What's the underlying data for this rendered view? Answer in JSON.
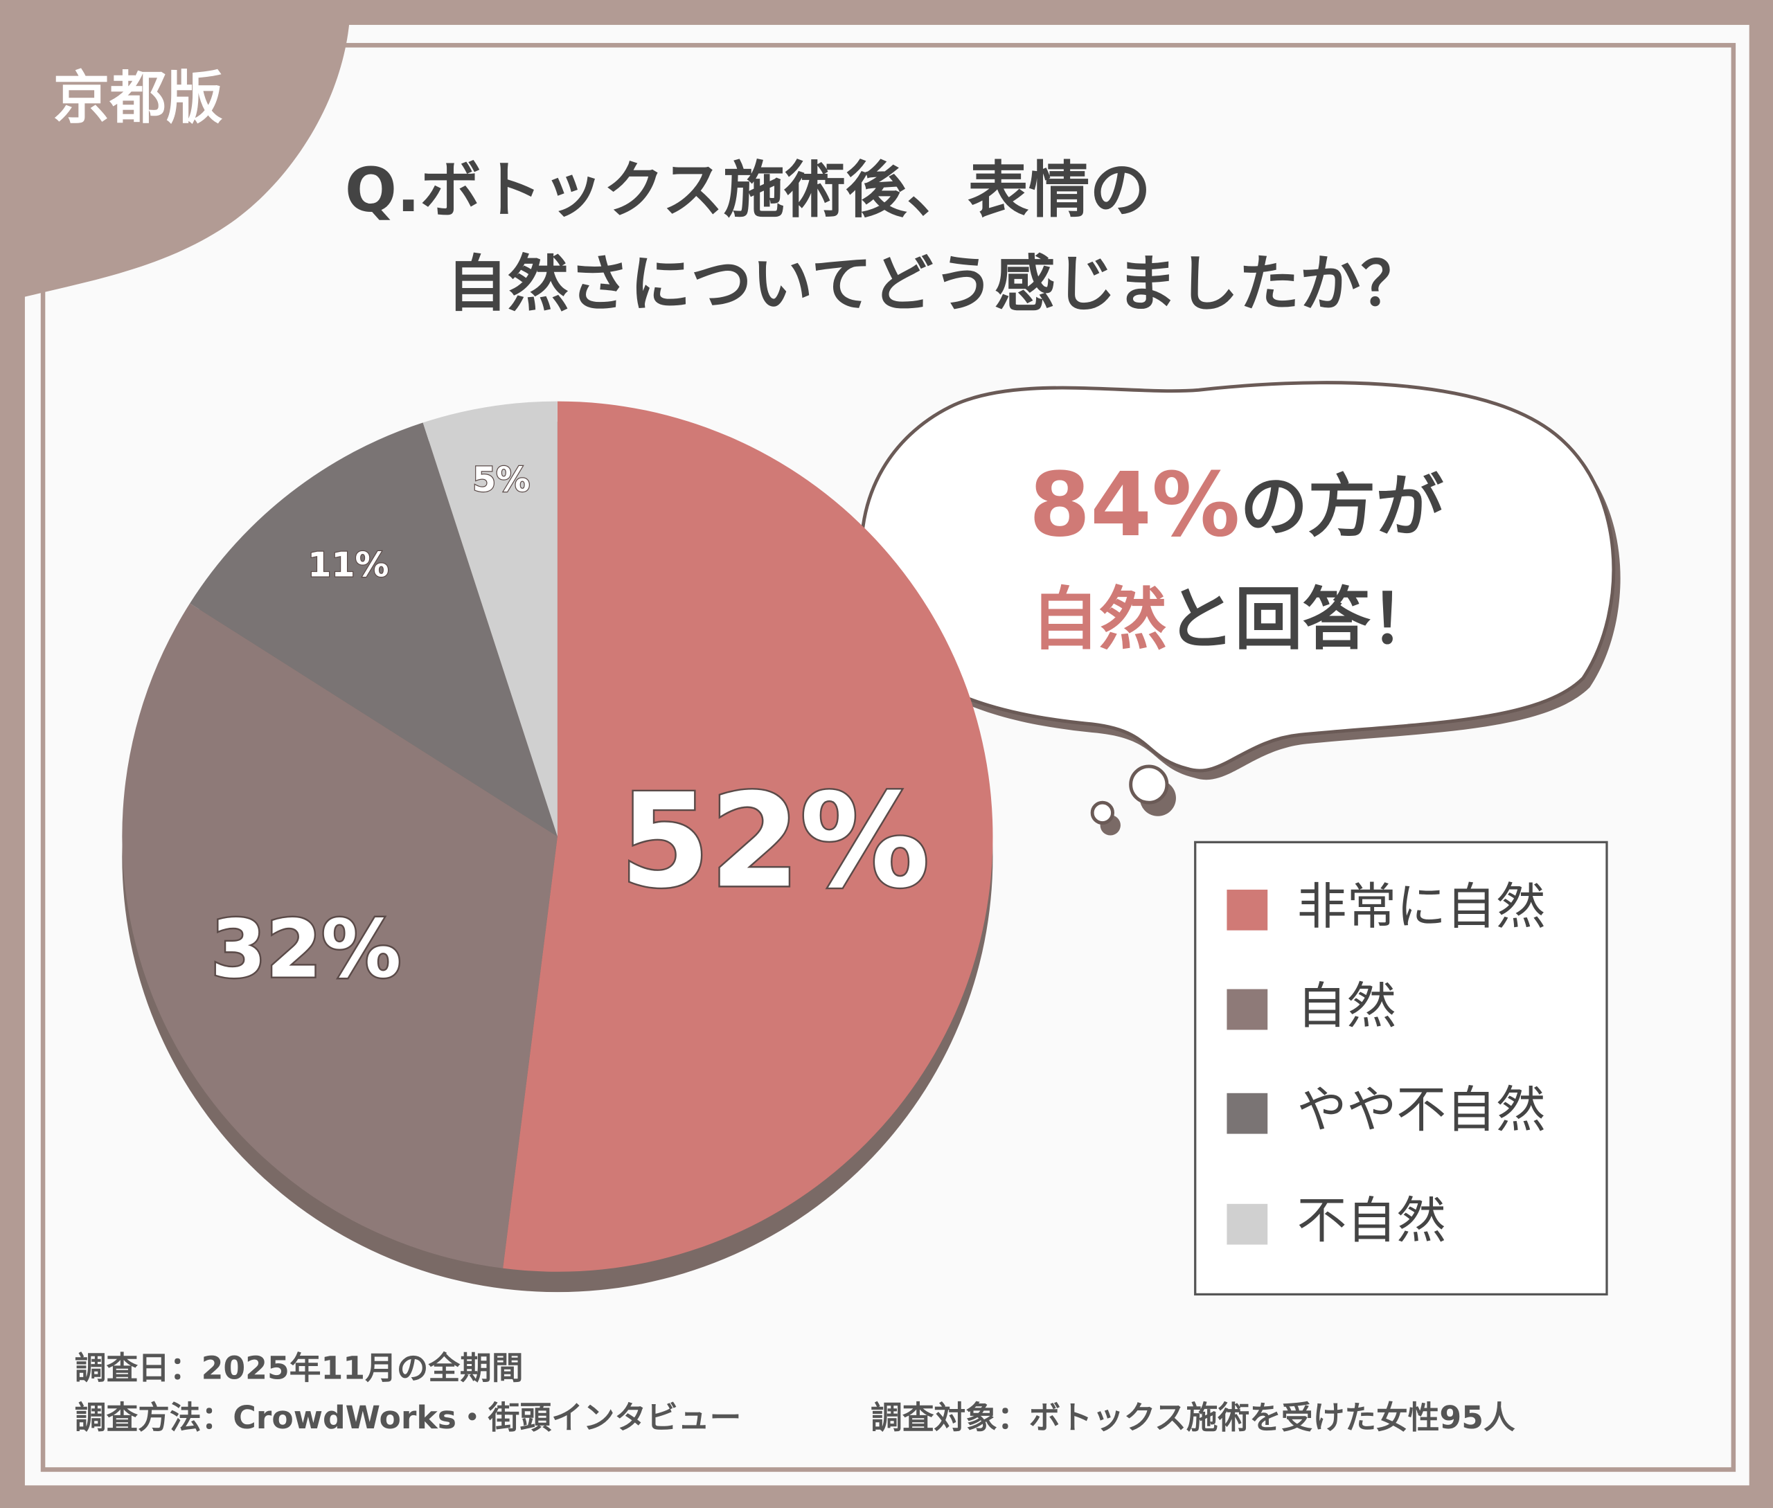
{
  "chart_data": {
    "type": "pie",
    "badge": "京都版",
    "title": [
      "Q.ボトックス施術後、表情の",
      "自然さについてどう感じましたか？"
    ],
    "categories": [
      "非常に自然",
      "自然",
      "やや不自然",
      "不自然"
    ],
    "values": [
      52,
      32,
      11,
      5
    ],
    "value_labels": [
      "52%",
      "32%",
      "11%",
      "5%"
    ],
    "colors": [
      "#d07a76",
      "#8e7a78",
      "#7a7474",
      "#d0d0d0"
    ],
    "callout": [
      [
        "84%",
        "の方が"
      ],
      [
        "自然",
        "と回答！"
      ]
    ],
    "footer": [
      "調査日：2025年11月の全期間",
      "調査方法：CrowdWorks・街頭インタビュー",
      "調査対象：ボトックス施術を受けた女性95人"
    ]
  }
}
